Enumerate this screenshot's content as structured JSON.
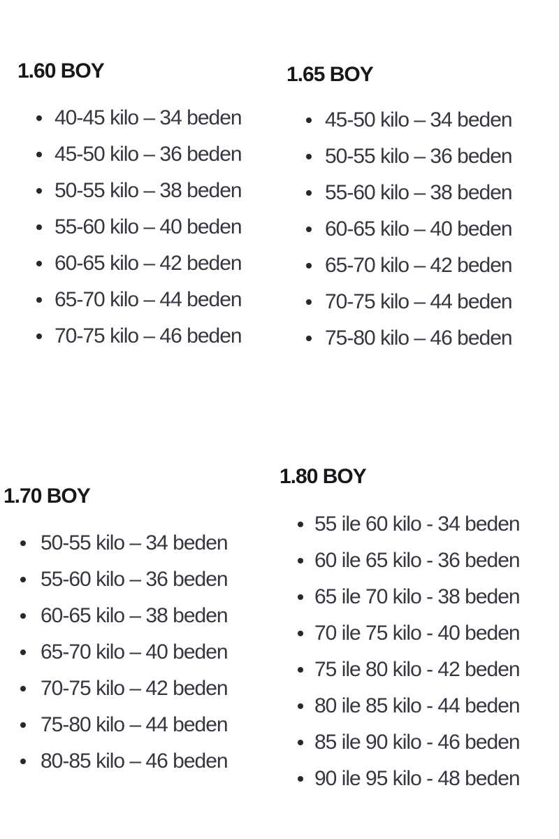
{
  "colors": {
    "background": "#ffffff",
    "heading_text": "#17181b",
    "body_text": "#34373f",
    "bullet": "#27292d"
  },
  "sections": [
    {
      "title": "1.60 BOY",
      "items": [
        "40-45 kilo – 34 beden",
        "45-50 kilo – 36 beden",
        "50-55 kilo – 38 beden",
        "55-60 kilo – 40 beden",
        "60-65 kilo – 42 beden",
        "65-70 kilo – 44 beden",
        "70-75 kilo – 46 beden"
      ]
    },
    {
      "title": "1.65 BOY",
      "items": [
        "45-50 kilo – 34 beden",
        "50-55 kilo – 36 beden",
        "55-60 kilo – 38 beden",
        "60-65 kilo – 40 beden",
        "65-70 kilo – 42 beden",
        "70-75 kilo – 44 beden",
        "75-80 kilo – 46 beden"
      ]
    },
    {
      "title": "1.70 BOY",
      "items": [
        "50-55 kilo – 34 beden",
        "55-60 kilo – 36 beden",
        "60-65 kilo – 38 beden",
        "65-70 kilo – 40 beden",
        "70-75 kilo – 42 beden",
        "75-80 kilo – 44 beden",
        "80-85 kilo – 46 beden"
      ]
    },
    {
      "title": "1.80 BOY",
      "items": [
        "55 ile 60 kilo - 34 beden",
        "60 ile 65 kilo - 36 beden",
        "65 ile 70 kilo - 38 beden",
        "70 ile 75 kilo - 40 beden",
        "75 ile 80 kilo - 42 beden",
        "80 ile 85 kilo - 44 beden",
        "85 ile 90 kilo - 46 beden",
        "90 ile 95 kilo - 48 beden"
      ]
    }
  ]
}
